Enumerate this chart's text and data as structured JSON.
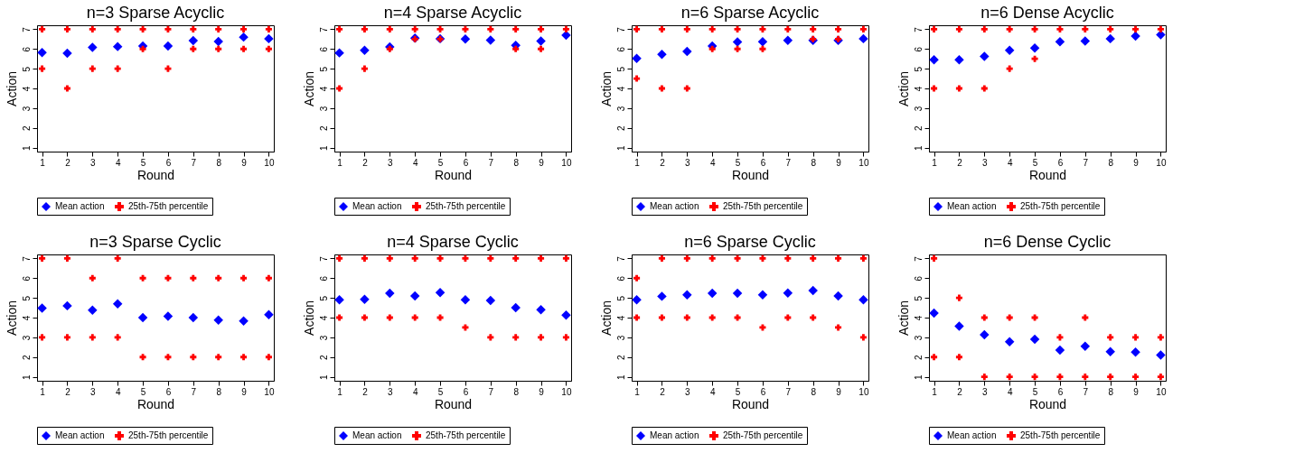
{
  "chart_data": [
    {
      "type": "scatter",
      "title": "n=3 Sparse Acyclic",
      "xlabel": "Round",
      "ylabel": "Action",
      "x": [
        1,
        2,
        3,
        4,
        5,
        6,
        7,
        8,
        9,
        10
      ],
      "xlim": [
        0.8,
        10.2
      ],
      "xticks": [
        1,
        2,
        3,
        4,
        5,
        6,
        7,
        8,
        9,
        10
      ],
      "ylim": [
        0.8,
        7.2
      ],
      "yticks": [
        1,
        2,
        3,
        4,
        5,
        6,
        7
      ],
      "grid": false,
      "legend": "bottom",
      "series": [
        {
          "name": "Mean action",
          "color": "#0000ff",
          "marker": "diamond",
          "values": [
            5.82,
            5.78,
            6.08,
            6.12,
            6.15,
            6.15,
            6.42,
            6.38,
            6.6,
            6.52
          ]
        },
        {
          "name": "25th-75th percentile",
          "color": "#ff0000",
          "marker": "cross",
          "x": [
            1,
            2,
            3,
            4,
            5,
            6,
            7,
            8,
            9,
            10,
            1,
            2,
            3,
            4,
            5,
            6,
            7,
            8,
            9,
            10
          ],
          "values": [
            7,
            7,
            7,
            7,
            7,
            7,
            7,
            7,
            7,
            7,
            5,
            4,
            5,
            5,
            6,
            5,
            6,
            6,
            6,
            6
          ]
        }
      ]
    },
    {
      "type": "scatter",
      "title": "n=4 Sparse Acyclic",
      "xlabel": "Round",
      "ylabel": "Action",
      "x": [
        1,
        2,
        3,
        4,
        5,
        6,
        7,
        8,
        9,
        10
      ],
      "xlim": [
        0.8,
        10.2
      ],
      "xticks": [
        1,
        2,
        3,
        4,
        5,
        6,
        7,
        8,
        9,
        10
      ],
      "ylim": [
        0.8,
        7.2
      ],
      "yticks": [
        1,
        2,
        3,
        4,
        5,
        6,
        7
      ],
      "grid": false,
      "legend": "bottom",
      "series": [
        {
          "name": "Mean action",
          "color": "#0000ff",
          "marker": "diamond",
          "values": [
            5.8,
            5.93,
            6.1,
            6.55,
            6.52,
            6.5,
            6.45,
            6.18,
            6.4,
            6.7
          ]
        },
        {
          "name": "25th-75th percentile",
          "color": "#ff0000",
          "marker": "cross",
          "x": [
            1,
            2,
            3,
            4,
            5,
            6,
            7,
            8,
            9,
            10,
            1,
            2,
            3,
            4,
            5,
            8,
            9
          ],
          "values": [
            7,
            7,
            7,
            7,
            7,
            7,
            7,
            7,
            7,
            7,
            4,
            5,
            6,
            6.5,
            6.5,
            6,
            6
          ]
        }
      ]
    },
    {
      "type": "scatter",
      "title": "n=6 Sparse Acyclic",
      "xlabel": "Round",
      "ylabel": "Action",
      "x": [
        1,
        2,
        3,
        4,
        5,
        6,
        7,
        8,
        9,
        10
      ],
      "xlim": [
        0.8,
        10.2
      ],
      "xticks": [
        1,
        2,
        3,
        4,
        5,
        6,
        7,
        8,
        9,
        10
      ],
      "ylim": [
        0.8,
        7.2
      ],
      "yticks": [
        1,
        2,
        3,
        4,
        5,
        6,
        7
      ],
      "grid": false,
      "legend": "bottom",
      "series": [
        {
          "name": "Mean action",
          "color": "#0000ff",
          "marker": "diamond",
          "values": [
            5.52,
            5.73,
            5.87,
            6.15,
            6.35,
            6.37,
            6.43,
            6.43,
            6.43,
            6.52
          ]
        },
        {
          "name": "25th-75th percentile",
          "color": "#ff0000",
          "marker": "cross",
          "x": [
            1,
            2,
            3,
            4,
            5,
            6,
            7,
            8,
            9,
            10,
            1,
            2,
            3,
            4,
            5,
            6,
            8,
            9
          ],
          "values": [
            7,
            7,
            7,
            7,
            7,
            7,
            7,
            7,
            7,
            7,
            4.5,
            4,
            4,
            6,
            6,
            6,
            6.5,
            6.5
          ]
        }
      ]
    },
    {
      "type": "scatter",
      "title": "n=6 Dense Acyclic",
      "xlabel": "Round",
      "ylabel": "Action",
      "x": [
        1,
        2,
        3,
        4,
        5,
        6,
        7,
        8,
        9,
        10
      ],
      "xlim": [
        0.8,
        10.2
      ],
      "xticks": [
        1,
        2,
        3,
        4,
        5,
        6,
        7,
        8,
        9,
        10
      ],
      "ylim": [
        0.8,
        7.2
      ],
      "yticks": [
        1,
        2,
        3,
        4,
        5,
        6,
        7
      ],
      "grid": false,
      "legend": "bottom",
      "series": [
        {
          "name": "Mean action",
          "color": "#0000ff",
          "marker": "diamond",
          "values": [
            5.45,
            5.45,
            5.62,
            5.93,
            6.05,
            6.37,
            6.4,
            6.52,
            6.65,
            6.72
          ]
        },
        {
          "name": "25th-75th percentile",
          "color": "#ff0000",
          "marker": "cross",
          "x": [
            1,
            2,
            3,
            4,
            5,
            6,
            7,
            8,
            9,
            10,
            1,
            2,
            3,
            4,
            5
          ],
          "values": [
            7,
            7,
            7,
            7,
            7,
            7,
            7,
            7,
            7,
            7,
            4,
            4,
            4,
            5,
            5.5
          ]
        }
      ]
    },
    {
      "type": "scatter",
      "title": "n=3 Sparse Cyclic",
      "xlabel": "Round",
      "ylabel": "Action",
      "x": [
        1,
        2,
        3,
        4,
        5,
        6,
        7,
        8,
        9,
        10
      ],
      "xlim": [
        0.8,
        10.2
      ],
      "xticks": [
        1,
        2,
        3,
        4,
        5,
        6,
        7,
        8,
        9,
        10
      ],
      "ylim": [
        0.8,
        7.2
      ],
      "yticks": [
        1,
        2,
        3,
        4,
        5,
        6,
        7
      ],
      "grid": false,
      "legend": "bottom",
      "series": [
        {
          "name": "Mean action",
          "color": "#0000ff",
          "marker": "diamond",
          "values": [
            4.48,
            4.6,
            4.38,
            4.7,
            4.0,
            4.07,
            4.0,
            3.87,
            3.83,
            4.15
          ]
        },
        {
          "name": "25th-75th percentile",
          "color": "#ff0000",
          "marker": "cross",
          "x": [
            1,
            2,
            3,
            4,
            5,
            6,
            7,
            8,
            9,
            10,
            1,
            2,
            3,
            4,
            5,
            6,
            7,
            8,
            9,
            10
          ],
          "values": [
            7,
            7,
            6,
            7,
            6,
            6,
            6,
            6,
            6,
            6,
            3,
            3,
            3,
            3,
            2,
            2,
            2,
            2,
            2,
            2
          ]
        }
      ]
    },
    {
      "type": "scatter",
      "title": "n=4 Sparse Cyclic",
      "xlabel": "Round",
      "ylabel": "Action",
      "x": [
        1,
        2,
        3,
        4,
        5,
        6,
        7,
        8,
        9,
        10
      ],
      "xlim": [
        0.8,
        10.2
      ],
      "xticks": [
        1,
        2,
        3,
        4,
        5,
        6,
        7,
        8,
        9,
        10
      ],
      "ylim": [
        0.8,
        7.2
      ],
      "yticks": [
        1,
        2,
        3,
        4,
        5,
        6,
        7
      ],
      "grid": false,
      "legend": "bottom",
      "series": [
        {
          "name": "Mean action",
          "color": "#0000ff",
          "marker": "diamond",
          "values": [
            4.9,
            4.93,
            5.23,
            5.1,
            5.27,
            4.9,
            4.87,
            4.5,
            4.4,
            4.13
          ]
        },
        {
          "name": "25th-75th percentile",
          "color": "#ff0000",
          "marker": "cross",
          "x": [
            1,
            2,
            3,
            4,
            5,
            6,
            7,
            8,
            9,
            10,
            1,
            2,
            3,
            4,
            5,
            6,
            7,
            8,
            9,
            10
          ],
          "values": [
            7,
            7,
            7,
            7,
            7,
            7,
            7,
            7,
            7,
            7,
            4,
            4,
            4,
            4,
            4,
            3.5,
            3,
            3,
            3,
            3
          ]
        }
      ]
    },
    {
      "type": "scatter",
      "title": "n=6 Sparse Cyclic",
      "xlabel": "Round",
      "ylabel": "Action",
      "x": [
        1,
        2,
        3,
        4,
        5,
        6,
        7,
        8,
        9,
        10
      ],
      "xlim": [
        0.8,
        10.2
      ],
      "xticks": [
        1,
        2,
        3,
        4,
        5,
        6,
        7,
        8,
        9,
        10
      ],
      "ylim": [
        0.8,
        7.2
      ],
      "yticks": [
        1,
        2,
        3,
        4,
        5,
        6,
        7
      ],
      "grid": false,
      "legend": "bottom",
      "series": [
        {
          "name": "Mean action",
          "color": "#0000ff",
          "marker": "diamond",
          "values": [
            4.9,
            5.08,
            5.15,
            5.23,
            5.23,
            5.15,
            5.25,
            5.37,
            5.1,
            4.9
          ]
        },
        {
          "name": "25th-75th percentile",
          "color": "#ff0000",
          "marker": "cross",
          "x": [
            1,
            2,
            3,
            4,
            5,
            6,
            7,
            8,
            9,
            10,
            1,
            2,
            3,
            4,
            5,
            6,
            7,
            8,
            9,
            10
          ],
          "values": [
            6,
            7,
            7,
            7,
            7,
            7,
            7,
            7,
            7,
            7,
            4,
            4,
            4,
            4,
            4,
            3.5,
            4,
            4,
            3.5,
            3
          ]
        }
      ]
    },
    {
      "type": "scatter",
      "title": "n=6 Dense Cyclic",
      "xlabel": "Round",
      "ylabel": "Action",
      "x": [
        1,
        2,
        3,
        4,
        5,
        6,
        7,
        8,
        9,
        10
      ],
      "xlim": [
        0.8,
        10.2
      ],
      "xticks": [
        1,
        2,
        3,
        4,
        5,
        6,
        7,
        8,
        9,
        10
      ],
      "ylim": [
        0.8,
        7.2
      ],
      "yticks": [
        1,
        2,
        3,
        4,
        5,
        6,
        7
      ],
      "grid": false,
      "legend": "bottom",
      "series": [
        {
          "name": "Mean action",
          "color": "#0000ff",
          "marker": "diamond",
          "values": [
            4.23,
            3.57,
            3.13,
            2.78,
            2.9,
            2.35,
            2.55,
            2.27,
            2.25,
            2.1
          ]
        },
        {
          "name": "25th-75th percentile",
          "color": "#ff0000",
          "marker": "cross",
          "x": [
            1,
            2,
            3,
            4,
            5,
            6,
            7,
            8,
            9,
            10,
            1,
            2,
            3,
            4,
            5,
            6,
            7,
            8,
            9,
            10
          ],
          "values": [
            7,
            5,
            4,
            4,
            4,
            3,
            4,
            3,
            3,
            3,
            2,
            2,
            1,
            1,
            1,
            1,
            1,
            1,
            1,
            1
          ]
        }
      ]
    }
  ]
}
